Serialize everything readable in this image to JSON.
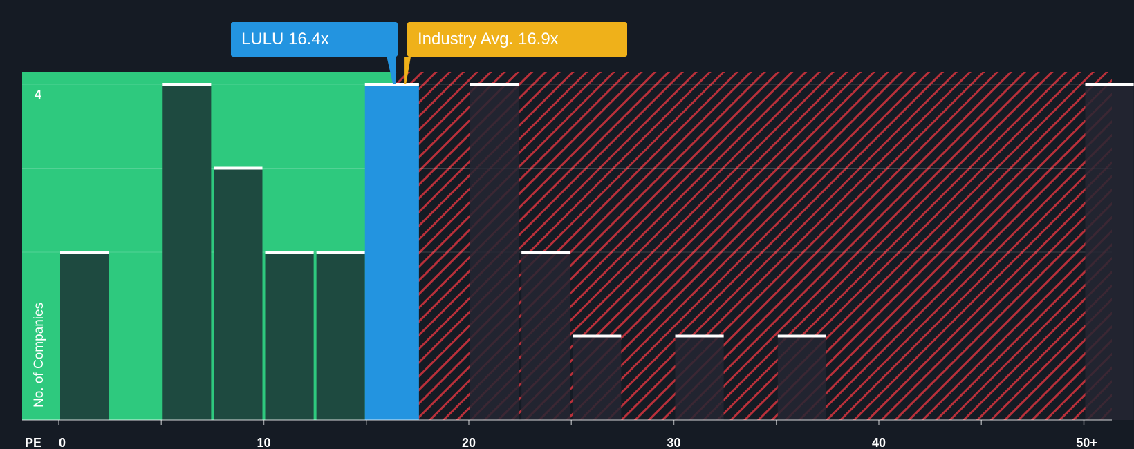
{
  "callouts": {
    "company": "LULU 16.4x",
    "industry": "Industry Avg. 16.9x"
  },
  "colors": {
    "background": "#151b24",
    "fair_zone": "#2ec97e",
    "overvalued_zone": "#b9303a",
    "company": "#2394e0",
    "industry": "#efb11a",
    "bar_in_fair_zone": "#1e4a40",
    "bar_in_over_zone": "#242633"
  },
  "chart_data": {
    "type": "bar",
    "xlabel": "PE",
    "ylabel": "No. of Companies",
    "x_ticks": [
      "0",
      "10",
      "20",
      "30",
      "40",
      "50+"
    ],
    "y_ticks": [
      "4"
    ],
    "ylim": [
      0,
      4
    ],
    "company": {
      "label": "LULU",
      "value": 16.4
    },
    "industry_avg": {
      "value": 16.9
    },
    "bins": [
      {
        "start": 0.0,
        "end": 2.5,
        "count": 2
      },
      {
        "start": 2.5,
        "end": 5.0,
        "count": 0
      },
      {
        "start": 5.0,
        "end": 7.5,
        "count": 4
      },
      {
        "start": 7.5,
        "end": 10.0,
        "count": 3
      },
      {
        "start": 10.0,
        "end": 12.5,
        "count": 2
      },
      {
        "start": 12.5,
        "end": 15.0,
        "count": 2
      },
      {
        "start": 15.0,
        "end": 17.5,
        "count": 4,
        "highlight": true
      },
      {
        "start": 17.5,
        "end": 20.0,
        "count": 0
      },
      {
        "start": 20.0,
        "end": 22.5,
        "count": 4
      },
      {
        "start": 22.5,
        "end": 25.0,
        "count": 2
      },
      {
        "start": 25.0,
        "end": 27.5,
        "count": 1
      },
      {
        "start": 27.5,
        "end": 30.0,
        "count": 0
      },
      {
        "start": 30.0,
        "end": 32.5,
        "count": 1
      },
      {
        "start": 32.5,
        "end": 35.0,
        "count": 0
      },
      {
        "start": 35.0,
        "end": 37.5,
        "count": 1
      },
      {
        "start": 37.5,
        "end": 50.0,
        "count": 0
      },
      {
        "start": 50.0,
        "end": 52.5,
        "count": 4
      }
    ]
  }
}
